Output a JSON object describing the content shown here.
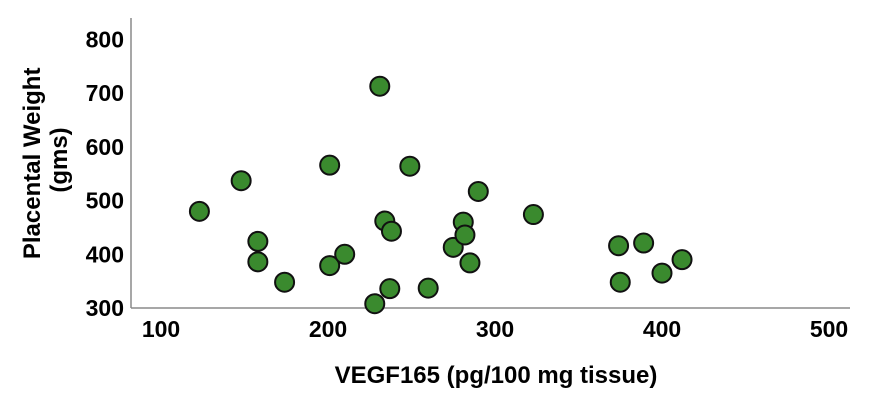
{
  "chart_data": {
    "type": "scatter",
    "xlabel": "VEGF165 (pg/100 mg tissue)",
    "ylabel_lines": [
      "Placental Weight",
      "(gms)"
    ],
    "xlim": [
      100,
      520
    ],
    "ylim": [
      300,
      825
    ],
    "xticks": [
      100,
      200,
      300,
      400,
      500
    ],
    "yticks": [
      300,
      400,
      500,
      600,
      700,
      800
    ],
    "grid": false,
    "marker_color": "#3a8a2e",
    "marker_edge_color": "#111111",
    "points": [
      {
        "x": 123,
        "y": 480
      },
      {
        "x": 148,
        "y": 537
      },
      {
        "x": 158,
        "y": 424
      },
      {
        "x": 158,
        "y": 386
      },
      {
        "x": 174,
        "y": 348
      },
      {
        "x": 201,
        "y": 566
      },
      {
        "x": 201,
        "y": 379
      },
      {
        "x": 210,
        "y": 400
      },
      {
        "x": 228,
        "y": 308
      },
      {
        "x": 231,
        "y": 713
      },
      {
        "x": 234,
        "y": 462
      },
      {
        "x": 237,
        "y": 336
      },
      {
        "x": 238,
        "y": 443
      },
      {
        "x": 249,
        "y": 564
      },
      {
        "x": 260,
        "y": 337
      },
      {
        "x": 275,
        "y": 413
      },
      {
        "x": 281,
        "y": 460
      },
      {
        "x": 282,
        "y": 436
      },
      {
        "x": 285,
        "y": 384
      },
      {
        "x": 290,
        "y": 517
      },
      {
        "x": 323,
        "y": 474
      },
      {
        "x": 374,
        "y": 416
      },
      {
        "x": 375,
        "y": 348
      },
      {
        "x": 389,
        "y": 421
      },
      {
        "x": 400,
        "y": 365
      },
      {
        "x": 412,
        "y": 390
      }
    ]
  }
}
